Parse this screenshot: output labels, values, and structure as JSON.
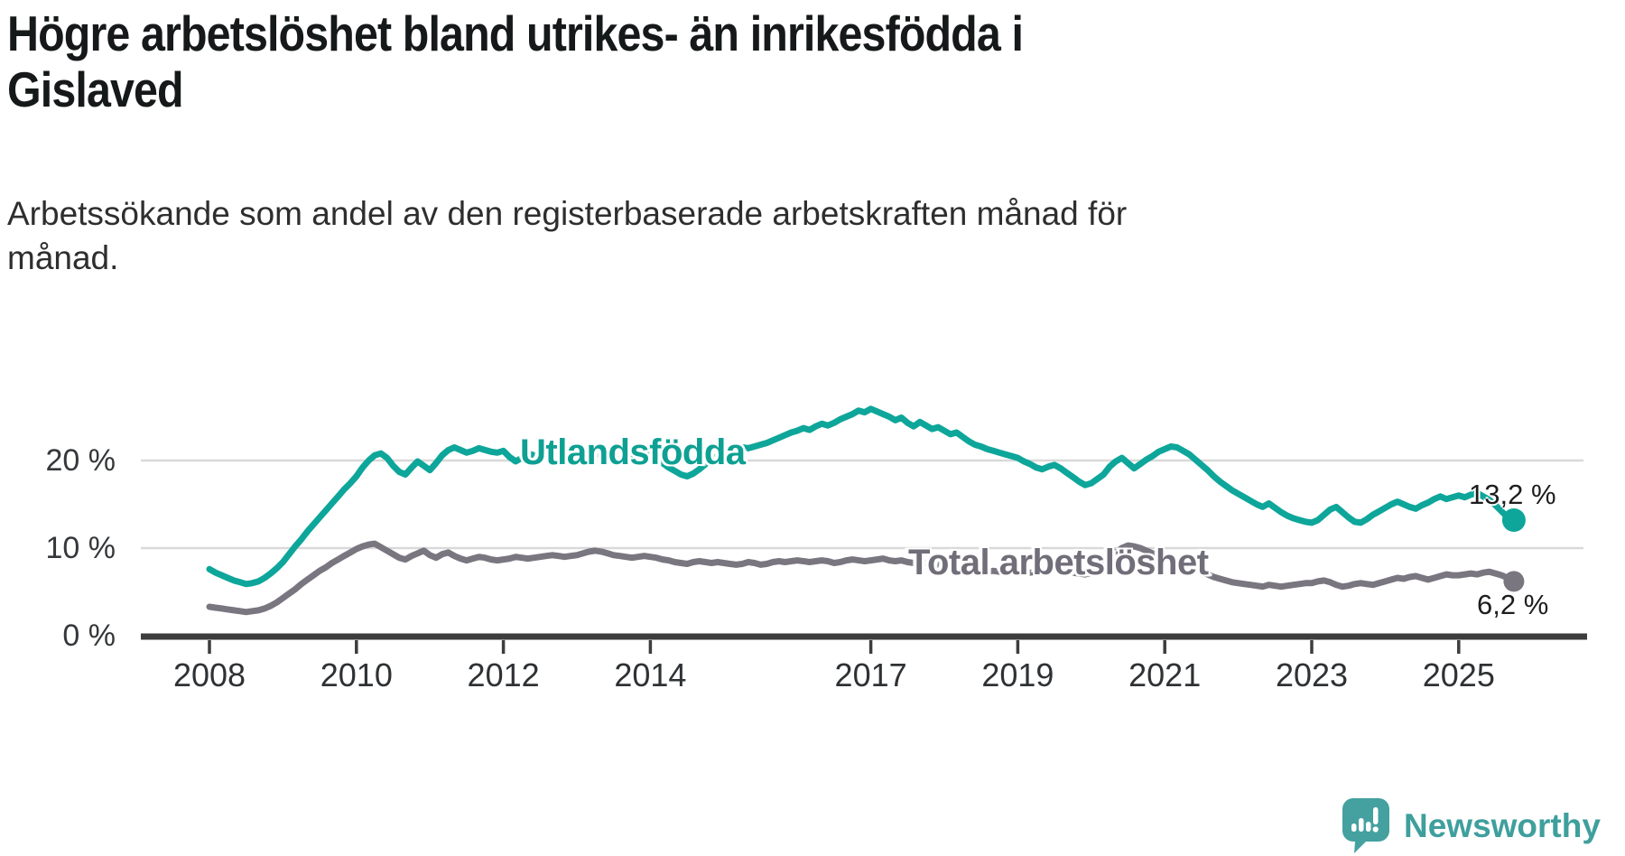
{
  "header": {
    "title_lines": [
      "Högre arbetslöshet bland utrikes- än inrikesfödda i",
      "Gislaved"
    ],
    "subtitle_lines": [
      "Arbetssökande som andel av den registerbaserade arbetskraften månad för",
      "månad."
    ]
  },
  "footer": {
    "brand": "Newsworthy",
    "logo_icon": "bar-chart-speech-bubble-icon",
    "brand_color": "#3f9f9d",
    "logo_background": "#44a19f"
  },
  "chart_data": {
    "type": "line",
    "title": "Högre arbetslöshet bland utrikes- än inrikesfödda i Gislaved",
    "subtitle": "Arbetssökande som andel av den registerbaserade arbetskraften månad för månad.",
    "unit": "%",
    "x_start": "2008-01",
    "x_end": "2025-10",
    "x_ticks": [
      2008,
      2010,
      2012,
      2014,
      2017,
      2019,
      2021,
      2023,
      2025
    ],
    "y_ticks": [
      {
        "value": 0,
        "label": "0 %"
      },
      {
        "value": 10,
        "label": "10 %"
      },
      {
        "value": 20,
        "label": "20 %"
      }
    ],
    "ylim": [
      0,
      27
    ],
    "grid": "horizontal-only",
    "legend_position": "inline-labels",
    "colors": {
      "grid": "#d9d9d9",
      "axis": "#3d3d3d",
      "tick_label": "#2f3234",
      "value_label": "#1d1d1d"
    },
    "series": [
      {
        "name": "Utlandsfödda",
        "color": "#0ea69a",
        "label_color": "#0da093",
        "end_value": 13.2,
        "end_value_label": "13,2 %",
        "values": [
          7.6,
          7.2,
          6.9,
          6.6,
          6.3,
          6.1,
          5.9,
          6.0,
          6.2,
          6.6,
          7.1,
          7.7,
          8.4,
          9.3,
          10.2,
          11.0,
          11.9,
          12.7,
          13.5,
          14.3,
          15.1,
          15.9,
          16.7,
          17.4,
          18.2,
          19.2,
          20.0,
          20.6,
          20.8,
          20.3,
          19.4,
          18.7,
          18.4,
          19.2,
          19.9,
          19.4,
          18.9,
          19.7,
          20.6,
          21.2,
          21.5,
          21.2,
          20.9,
          21.1,
          21.4,
          21.2,
          21.0,
          20.9,
          21.1,
          20.4,
          19.9,
          20.3,
          20.8,
          20.6,
          20.4,
          20.6,
          20.8,
          20.7,
          20.5,
          20.6,
          20.7,
          20.8,
          20.9,
          20.8,
          20.6,
          20.4,
          20.2,
          20.1,
          20.2,
          20.4,
          20.6,
          20.8,
          20.6,
          20.2,
          19.7,
          19.2,
          18.8,
          18.4,
          18.2,
          18.5,
          19.0,
          19.6,
          20.1,
          20.5,
          20.8,
          21.1,
          21.3,
          21.5,
          21.4,
          21.6,
          21.8,
          22.0,
          22.3,
          22.6,
          22.9,
          23.2,
          23.4,
          23.7,
          23.5,
          23.9,
          24.2,
          24.0,
          24.3,
          24.7,
          25.0,
          25.3,
          25.7,
          25.5,
          25.9,
          25.6,
          25.3,
          25.0,
          24.6,
          24.9,
          24.3,
          23.9,
          24.4,
          24.0,
          23.6,
          23.8,
          23.4,
          23.0,
          23.2,
          22.7,
          22.2,
          21.8,
          21.6,
          21.3,
          21.1,
          20.9,
          20.7,
          20.5,
          20.3,
          19.9,
          19.6,
          19.2,
          19.0,
          19.3,
          19.5,
          19.1,
          18.6,
          18.1,
          17.6,
          17.2,
          17.4,
          17.9,
          18.4,
          19.3,
          19.9,
          20.3,
          19.7,
          19.1,
          19.6,
          20.1,
          20.5,
          21.0,
          21.3,
          21.6,
          21.5,
          21.1,
          20.7,
          20.1,
          19.5,
          18.9,
          18.2,
          17.6,
          17.1,
          16.6,
          16.2,
          15.8,
          15.4,
          15.0,
          14.7,
          15.1,
          14.6,
          14.1,
          13.7,
          13.4,
          13.2,
          13.0,
          12.9,
          13.2,
          13.8,
          14.4,
          14.7,
          14.1,
          13.5,
          13.0,
          12.9,
          13.3,
          13.8,
          14.2,
          14.6,
          15.0,
          15.3,
          15.0,
          14.7,
          14.5,
          14.9,
          15.2,
          15.6,
          15.9,
          15.6,
          15.8,
          16.0,
          15.8,
          16.1,
          16.3,
          15.9,
          15.5,
          14.9,
          14.2,
          13.5,
          13.2
        ]
      },
      {
        "name": "Total arbetslöshet",
        "color": "#797680",
        "label_color": "#716e79",
        "end_value": 6.2,
        "end_value_label": "6,2 %",
        "values": [
          3.3,
          3.2,
          3.1,
          3.0,
          2.9,
          2.8,
          2.7,
          2.8,
          2.9,
          3.1,
          3.4,
          3.8,
          4.3,
          4.8,
          5.3,
          5.9,
          6.4,
          6.9,
          7.4,
          7.8,
          8.3,
          8.7,
          9.1,
          9.5,
          9.9,
          10.2,
          10.4,
          10.5,
          10.1,
          9.7,
          9.3,
          8.9,
          8.7,
          9.1,
          9.4,
          9.7,
          9.2,
          8.9,
          9.3,
          9.5,
          9.1,
          8.8,
          8.6,
          8.8,
          9.0,
          8.9,
          8.7,
          8.6,
          8.7,
          8.8,
          9.0,
          8.9,
          8.8,
          8.9,
          9.0,
          9.1,
          9.2,
          9.1,
          9.0,
          9.1,
          9.2,
          9.4,
          9.6,
          9.7,
          9.6,
          9.4,
          9.2,
          9.1,
          9.0,
          8.9,
          9.0,
          9.1,
          9.0,
          8.9,
          8.7,
          8.6,
          8.4,
          8.3,
          8.2,
          8.4,
          8.5,
          8.4,
          8.3,
          8.4,
          8.3,
          8.2,
          8.1,
          8.2,
          8.4,
          8.3,
          8.1,
          8.2,
          8.4,
          8.5,
          8.4,
          8.5,
          8.6,
          8.5,
          8.4,
          8.5,
          8.6,
          8.5,
          8.3,
          8.4,
          8.6,
          8.7,
          8.6,
          8.5,
          8.6,
          8.7,
          8.8,
          8.6,
          8.5,
          8.6,
          8.4,
          8.3,
          8.4,
          8.3,
          8.2,
          8.1,
          8.0,
          7.9,
          7.8,
          7.7,
          7.6,
          7.5,
          7.4,
          7.3,
          7.4,
          7.3,
          7.2,
          7.3,
          7.4,
          7.3,
          7.2,
          7.3,
          7.4,
          7.5,
          7.6,
          7.5,
          7.4,
          7.2,
          7.1,
          7.0,
          7.2,
          7.4,
          7.9,
          8.8,
          9.5,
          10.0,
          10.3,
          10.2,
          10.0,
          9.7,
          9.4,
          9.2,
          9.0,
          8.8,
          8.5,
          8.2,
          7.9,
          7.6,
          7.3,
          7.0,
          6.7,
          6.5,
          6.3,
          6.1,
          6.0,
          5.9,
          5.8,
          5.7,
          5.6,
          5.8,
          5.7,
          5.6,
          5.7,
          5.8,
          5.9,
          6.0,
          6.0,
          6.2,
          6.3,
          6.1,
          5.8,
          5.6,
          5.7,
          5.9,
          6.0,
          5.9,
          5.8,
          6.0,
          6.2,
          6.4,
          6.6,
          6.5,
          6.7,
          6.8,
          6.6,
          6.4,
          6.6,
          6.8,
          7.0,
          6.9,
          6.9,
          7.0,
          7.1,
          7.0,
          7.2,
          7.3,
          7.1,
          6.9,
          6.6,
          6.2
        ]
      }
    ]
  }
}
